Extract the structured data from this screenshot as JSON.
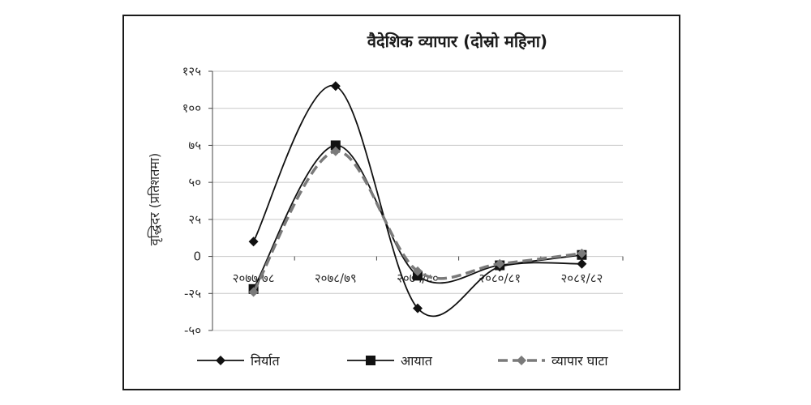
{
  "chart_data": {
    "type": "line",
    "title": "वैदेशिक व्यापार (दोस्रो महिना)",
    "xlabel": "",
    "ylabel": "वृद्धिदर (प्रतिशतमा)",
    "categories": [
      "२०७७/७८",
      "२०७८/७९",
      "२०७९/८०",
      "२०८०/८१",
      "२०८१/८२"
    ],
    "ylim": [
      -50,
      125
    ],
    "yticks": [
      -50,
      -25,
      0,
      25,
      50,
      75,
      100,
      125
    ],
    "ytick_labels": [
      "-५०",
      "-२५",
      "0",
      "२५",
      "५०",
      "७५",
      "१००",
      "१२५"
    ],
    "grid": true,
    "legend_position": "bottom",
    "series": [
      {
        "name": "निर्यात",
        "values": [
          10,
          115,
          -35,
          -7,
          -5
        ],
        "color": "#111111",
        "marker": "diamond",
        "dash": "solid"
      },
      {
        "name": "आयात",
        "values": [
          -22,
          75,
          -13,
          -6,
          1
        ],
        "color": "#111111",
        "marker": "square",
        "dash": "solid"
      },
      {
        "name": "व्यापार घाटा",
        "values": [
          -24,
          71,
          -10,
          -5,
          2
        ],
        "color": "#7a7a7a",
        "marker": "diamond",
        "dash": "dashed"
      }
    ]
  }
}
